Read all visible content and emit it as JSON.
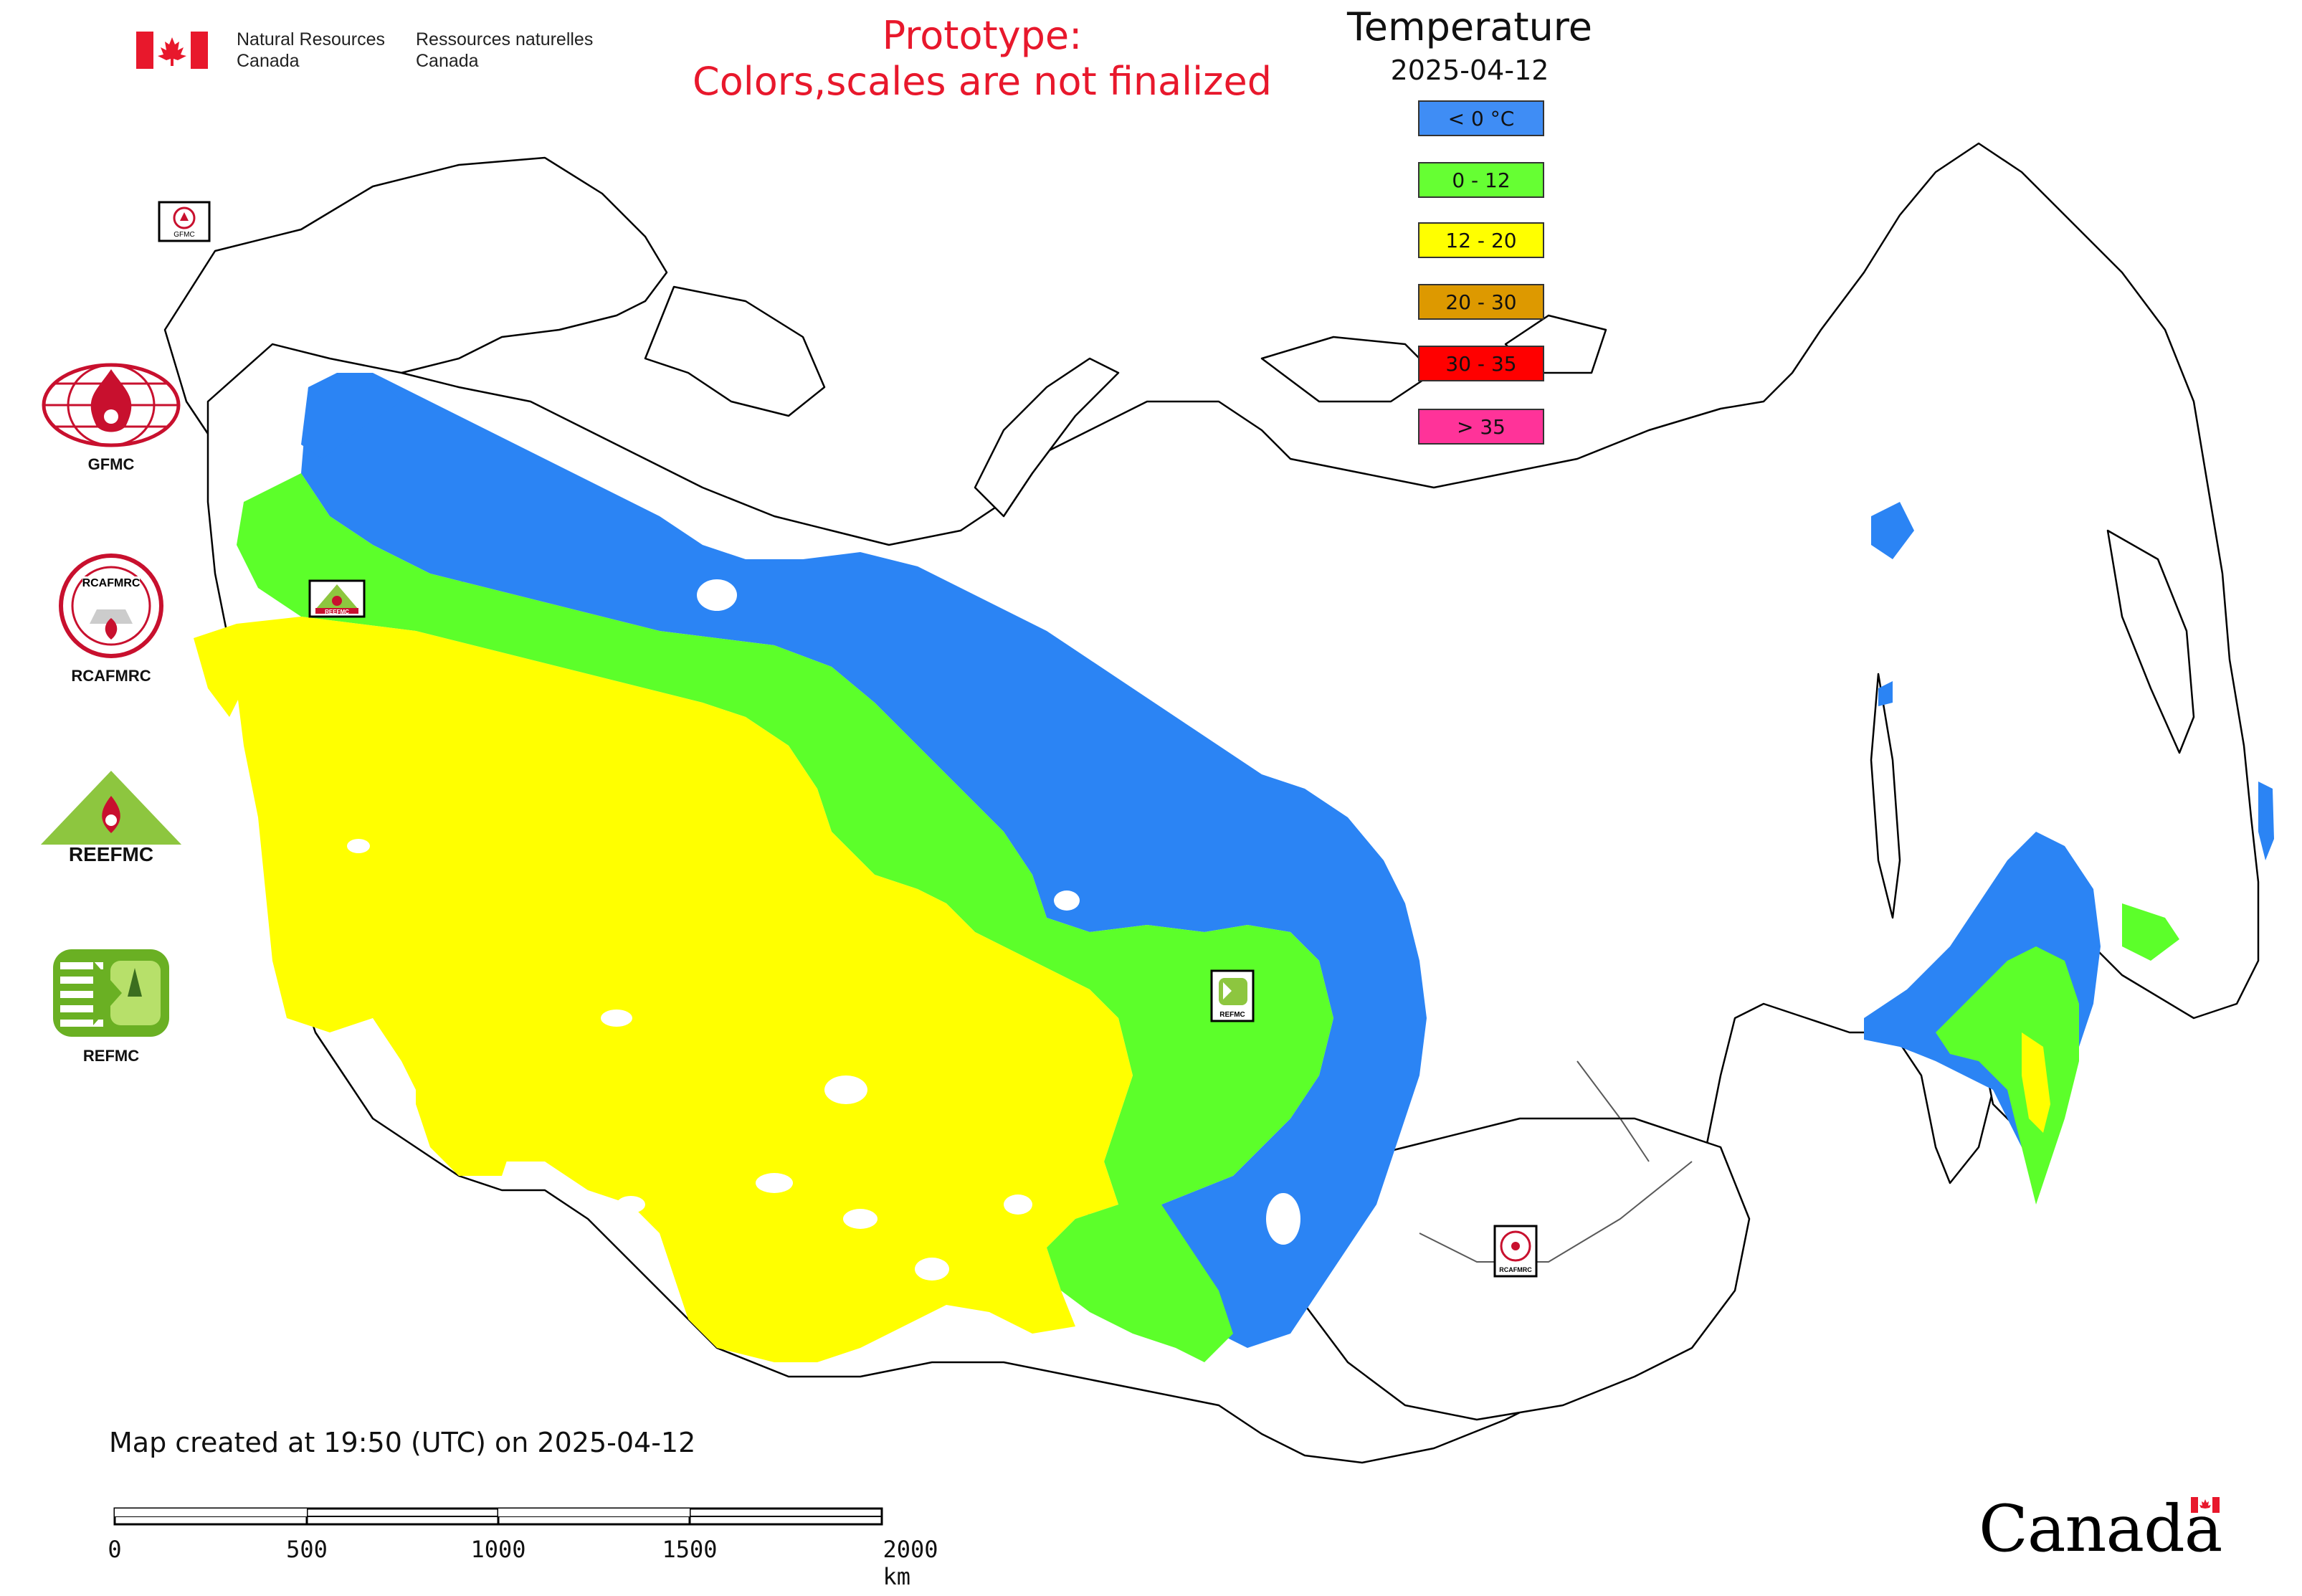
{
  "header": {
    "agency_en_line1": "Natural Resources",
    "agency_en_line2": "Canada",
    "agency_fr_line1": "Ressources naturelles",
    "agency_fr_line2": "Canada",
    "prototype_line1": "Prototype:",
    "prototype_line2": "Colors,scales are not finalized"
  },
  "legend": {
    "title": "Temperature",
    "date": "2025-04-12",
    "classes": [
      {
        "label": "< 0 °C",
        "color": "#3f8df5"
      },
      {
        "label": "0 - 12",
        "color": "#66ff33"
      },
      {
        "label": "12 - 20",
        "color": "#ffff00"
      },
      {
        "label": "20 - 30",
        "color": "#dd9900"
      },
      {
        "label": "30 - 35",
        "color": "#ff0000"
      },
      {
        "label": "> 35",
        "color": "#ff3399"
      }
    ]
  },
  "side_logos": {
    "gfmc": "GFMC",
    "rcafmrc": "RCAFMRC",
    "reefmc": "REEFMC",
    "refmc": "REFMC",
    "rcafmrc_badge": "RCAFMRC",
    "reefmc_badge": "REEFMC"
  },
  "map_markers": {
    "gfmc": "GFMC",
    "reefmc": "REEFMC",
    "refmc": "REFMC",
    "rcafmrc": "RCAFMRC"
  },
  "footer": {
    "created": "Map created at 19:50 (UTC) on 2025-04-12",
    "scale_labels": [
      "0",
      "500",
      "1000",
      "1500",
      "2000 km"
    ],
    "canada_wordmark": "Canada"
  },
  "colors": {
    "blue": "#2b84f4",
    "green": "#5cff2a",
    "yellow": "#ffff00",
    "red": "#e8182c"
  }
}
